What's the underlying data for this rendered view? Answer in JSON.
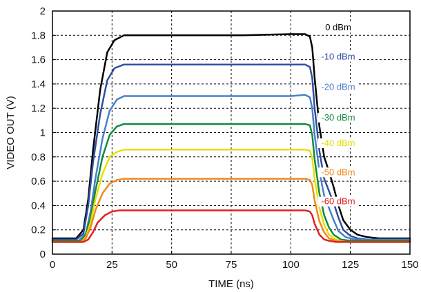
{
  "chart_data": {
    "type": "line",
    "xlabel": "TIME (ns)",
    "ylabel": "VIDEO OUT (V)",
    "xlim": [
      0,
      150
    ],
    "ylim": [
      0,
      2
    ],
    "x_ticks": [
      0,
      25,
      50,
      75,
      100,
      125,
      150
    ],
    "y_ticks": [
      0,
      0.2,
      0.4,
      0.6,
      0.8,
      1,
      1.2,
      1.4,
      1.6,
      1.8,
      2
    ],
    "grid": true,
    "grid_style": "dashed",
    "series": [
      {
        "name": "0 dBm",
        "color": "#000000",
        "label_at": [
          75,
          1.84
        ],
        "x": [
          0,
          10,
          13,
          15,
          17,
          20,
          23,
          26,
          30,
          40,
          60,
          80,
          100,
          106,
          108,
          109,
          110,
          112,
          114,
          116,
          118,
          120,
          122,
          125,
          128,
          132,
          137,
          140,
          150
        ],
        "y": [
          0.13,
          0.13,
          0.2,
          0.45,
          0.85,
          1.35,
          1.66,
          1.76,
          1.8,
          1.8,
          1.8,
          1.8,
          1.81,
          1.81,
          1.79,
          1.7,
          1.45,
          1.05,
          0.8,
          0.68,
          0.55,
          0.4,
          0.28,
          0.2,
          0.16,
          0.14,
          0.13,
          0.13,
          0.13
        ]
      },
      {
        "name": "-10 dBm",
        "color": "#2e4fa0",
        "label_at": [
          75,
          1.6
        ],
        "x": [
          0,
          10,
          13,
          15,
          17,
          20,
          23,
          26,
          30,
          40,
          60,
          80,
          100,
          106,
          108,
          109,
          110,
          112,
          114,
          116,
          118,
          120,
          122,
          125,
          128,
          132,
          150
        ],
        "y": [
          0.12,
          0.12,
          0.17,
          0.4,
          0.75,
          1.15,
          1.43,
          1.53,
          1.56,
          1.56,
          1.56,
          1.56,
          1.56,
          1.56,
          1.54,
          1.45,
          1.2,
          0.85,
          0.62,
          0.52,
          0.42,
          0.3,
          0.2,
          0.15,
          0.13,
          0.12,
          0.12
        ]
      },
      {
        "name": "-20 dBm",
        "color": "#4a7fc8",
        "label_at": [
          75,
          1.35
        ],
        "x": [
          0,
          11,
          14,
          16,
          18,
          21,
          24,
          27,
          30,
          40,
          60,
          80,
          100,
          106,
          108,
          109,
          110,
          112,
          114,
          116,
          118,
          120,
          123,
          127,
          150
        ],
        "y": [
          0.11,
          0.11,
          0.17,
          0.35,
          0.62,
          0.95,
          1.18,
          1.27,
          1.3,
          1.3,
          1.3,
          1.3,
          1.3,
          1.31,
          1.29,
          1.2,
          0.98,
          0.68,
          0.48,
          0.38,
          0.28,
          0.19,
          0.14,
          0.12,
          0.12
        ]
      },
      {
        "name": "-30 dBm",
        "color": "#128a3c",
        "label_at": [
          75,
          1.1
        ],
        "x": [
          0,
          12,
          14,
          16,
          18,
          21,
          24,
          27,
          30,
          40,
          60,
          80,
          100,
          106,
          108,
          109,
          110,
          112,
          114,
          116,
          118,
          121,
          125,
          150
        ],
        "y": [
          0.11,
          0.11,
          0.16,
          0.3,
          0.52,
          0.8,
          0.98,
          1.05,
          1.07,
          1.07,
          1.07,
          1.07,
          1.07,
          1.07,
          1.06,
          0.98,
          0.78,
          0.5,
          0.32,
          0.22,
          0.16,
          0.12,
          0.11,
          0.11
        ]
      },
      {
        "name": "-40 dBm",
        "color": "#e8e000",
        "label_at": [
          75,
          0.89
        ],
        "x": [
          0,
          12,
          14,
          16,
          18,
          21,
          24,
          27,
          30,
          40,
          60,
          80,
          100,
          106,
          108,
          109,
          110,
          112,
          114,
          116,
          119,
          123,
          150
        ],
        "y": [
          0.1,
          0.1,
          0.14,
          0.26,
          0.45,
          0.66,
          0.8,
          0.84,
          0.86,
          0.86,
          0.86,
          0.86,
          0.86,
          0.86,
          0.85,
          0.79,
          0.62,
          0.38,
          0.24,
          0.16,
          0.12,
          0.1,
          0.1
        ]
      },
      {
        "name": "-50 dBm",
        "color": "#f08a1c",
        "label_at": [
          75,
          0.65
        ],
        "x": [
          0,
          12,
          14,
          16,
          18,
          21,
          24,
          27,
          30,
          40,
          60,
          80,
          100,
          106,
          108,
          109,
          110,
          112,
          114,
          116,
          119,
          123,
          150
        ],
        "y": [
          0.1,
          0.1,
          0.13,
          0.22,
          0.36,
          0.5,
          0.58,
          0.61,
          0.62,
          0.62,
          0.62,
          0.62,
          0.62,
          0.62,
          0.61,
          0.57,
          0.44,
          0.27,
          0.18,
          0.13,
          0.11,
          0.1,
          0.1
        ]
      },
      {
        "name": "-60 dBm",
        "color": "#e02020",
        "label_at": [
          75,
          0.41
        ],
        "x": [
          0,
          13,
          15,
          17,
          19,
          22,
          25,
          28,
          30,
          40,
          60,
          80,
          100,
          106,
          108,
          109,
          110,
          112,
          114,
          116,
          119,
          150
        ],
        "y": [
          0.1,
          0.1,
          0.12,
          0.18,
          0.26,
          0.32,
          0.35,
          0.36,
          0.36,
          0.36,
          0.36,
          0.36,
          0.36,
          0.36,
          0.35,
          0.32,
          0.25,
          0.16,
          0.12,
          0.11,
          0.1,
          0.1
        ]
      }
    ]
  }
}
